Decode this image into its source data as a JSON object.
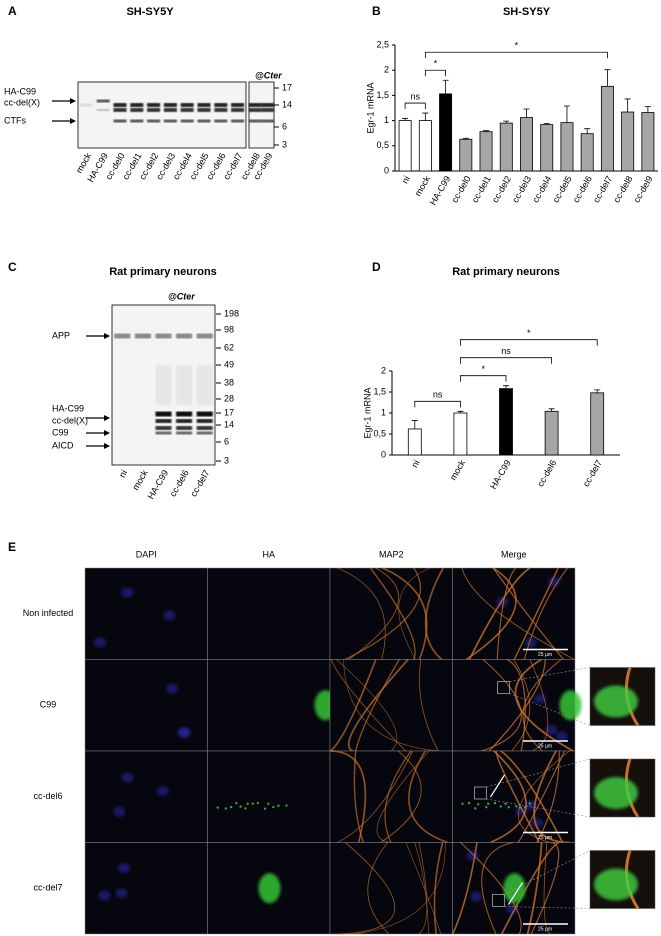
{
  "panel_labels": [
    "A",
    "B",
    "C",
    "D",
    "E"
  ],
  "blot_a": {
    "title": "SH-SY5Y",
    "antibody": "@Cter",
    "lanes": [
      "mock",
      "HA-C99",
      "cc-del0",
      "cc-del1",
      "cc-del2",
      "cc-del3",
      "cc-del4",
      "cc-del5",
      "cc-del6",
      "cc-del7",
      "cc-del8",
      "cc-del9"
    ],
    "band_labels": [
      "HA-C99",
      "cc-del(X)",
      "CTFs"
    ],
    "mw_markers": [
      17,
      14,
      6,
      3
    ]
  },
  "blot_c": {
    "title": "Rat primary neurons",
    "antibody": "@Cter",
    "lanes": [
      "ni",
      "mock",
      "HA-C99",
      "cc-del6",
      "cc-del7"
    ],
    "band_labels": [
      "APP",
      "HA-C99",
      "cc-del(X)",
      "C99",
      "AICD"
    ],
    "mw_markers": [
      198,
      98,
      62,
      49,
      38,
      28,
      17,
      14,
      6,
      3
    ]
  },
  "chart_data": [
    {
      "type": "bar",
      "title": "SH-SY5Y",
      "y_label": "Egr-1 mRNA",
      "categories": [
        "ni",
        "mock",
        "HA-C99",
        "cc-del0",
        "cc-del1",
        "cc-del2",
        "cc-del3",
        "cc-del4",
        "cc-del5",
        "cc-del6",
        "cc-del7",
        "cc-del8",
        "cc-del9"
      ],
      "values": [
        1.0,
        1.0,
        1.53,
        0.63,
        0.78,
        0.95,
        1.06,
        0.92,
        0.96,
        0.74,
        1.68,
        1.17,
        1.16
      ],
      "errors": [
        0.04,
        0.15,
        0.27,
        0.02,
        0.02,
        0.04,
        0.17,
        0.02,
        0.33,
        0.1,
        0.33,
        0.26,
        0.12
      ],
      "colors": [
        "#ffffff",
        "#ffffff",
        "#000000",
        "#a6a6a6",
        "#a6a6a6",
        "#a6a6a6",
        "#a6a6a6",
        "#a6a6a6",
        "#a6a6a6",
        "#a6a6a6",
        "#a6a6a6",
        "#a6a6a6",
        "#a6a6a6"
      ],
      "ylim": [
        0,
        2.5
      ],
      "yticks": [
        0,
        {
          "value": 0.5,
          "label": "0,5"
        },
        1,
        {
          "value": 1.5,
          "label": "1,5"
        },
        2,
        {
          "value": 2.5,
          "label": "2,5"
        }
      ],
      "brackets": [
        {
          "label": "ns",
          "from": "ni",
          "to": "mock"
        },
        {
          "label": "*",
          "from": "mock",
          "to": "HA-C99"
        },
        {
          "label": "*",
          "from": "mock",
          "to": "cc-del7"
        }
      ]
    },
    {
      "type": "bar",
      "title": "Rat primary neurons",
      "y_label": "Egr-1 mRNA",
      "categories": [
        "ni",
        "mock",
        "HA-C99",
        "cc-del6",
        "cc-del7"
      ],
      "values": [
        0.62,
        1.0,
        1.58,
        1.04,
        1.48
      ],
      "errors": [
        0.2,
        0.04,
        0.07,
        0.06,
        0.07
      ],
      "colors": [
        "#ffffff",
        "#ffffff",
        "#000000",
        "#a6a6a6",
        "#a6a6a6"
      ],
      "ylim": [
        0,
        2
      ],
      "yticks": [
        0,
        {
          "value": 0.5,
          "label": "0,5"
        },
        1,
        {
          "value": 1.5,
          "label": "1,5"
        },
        2
      ],
      "brackets": [
        {
          "label": "ns",
          "from": "ni",
          "to": "mock"
        },
        {
          "label": "*",
          "from": "mock",
          "to": "HA-C99"
        },
        {
          "label": "ns",
          "from": "mock",
          "to": "cc-del6"
        },
        {
          "label": "*",
          "from": "mock",
          "to": "cc-del7"
        }
      ]
    }
  ],
  "microscopy": {
    "columns": [
      "DAPI",
      "HA",
      "MAP2",
      "Merge"
    ],
    "rows": [
      "Non infected",
      "C99",
      "cc-del6",
      "cc-del7"
    ],
    "scale_bar": "25 µm"
  }
}
